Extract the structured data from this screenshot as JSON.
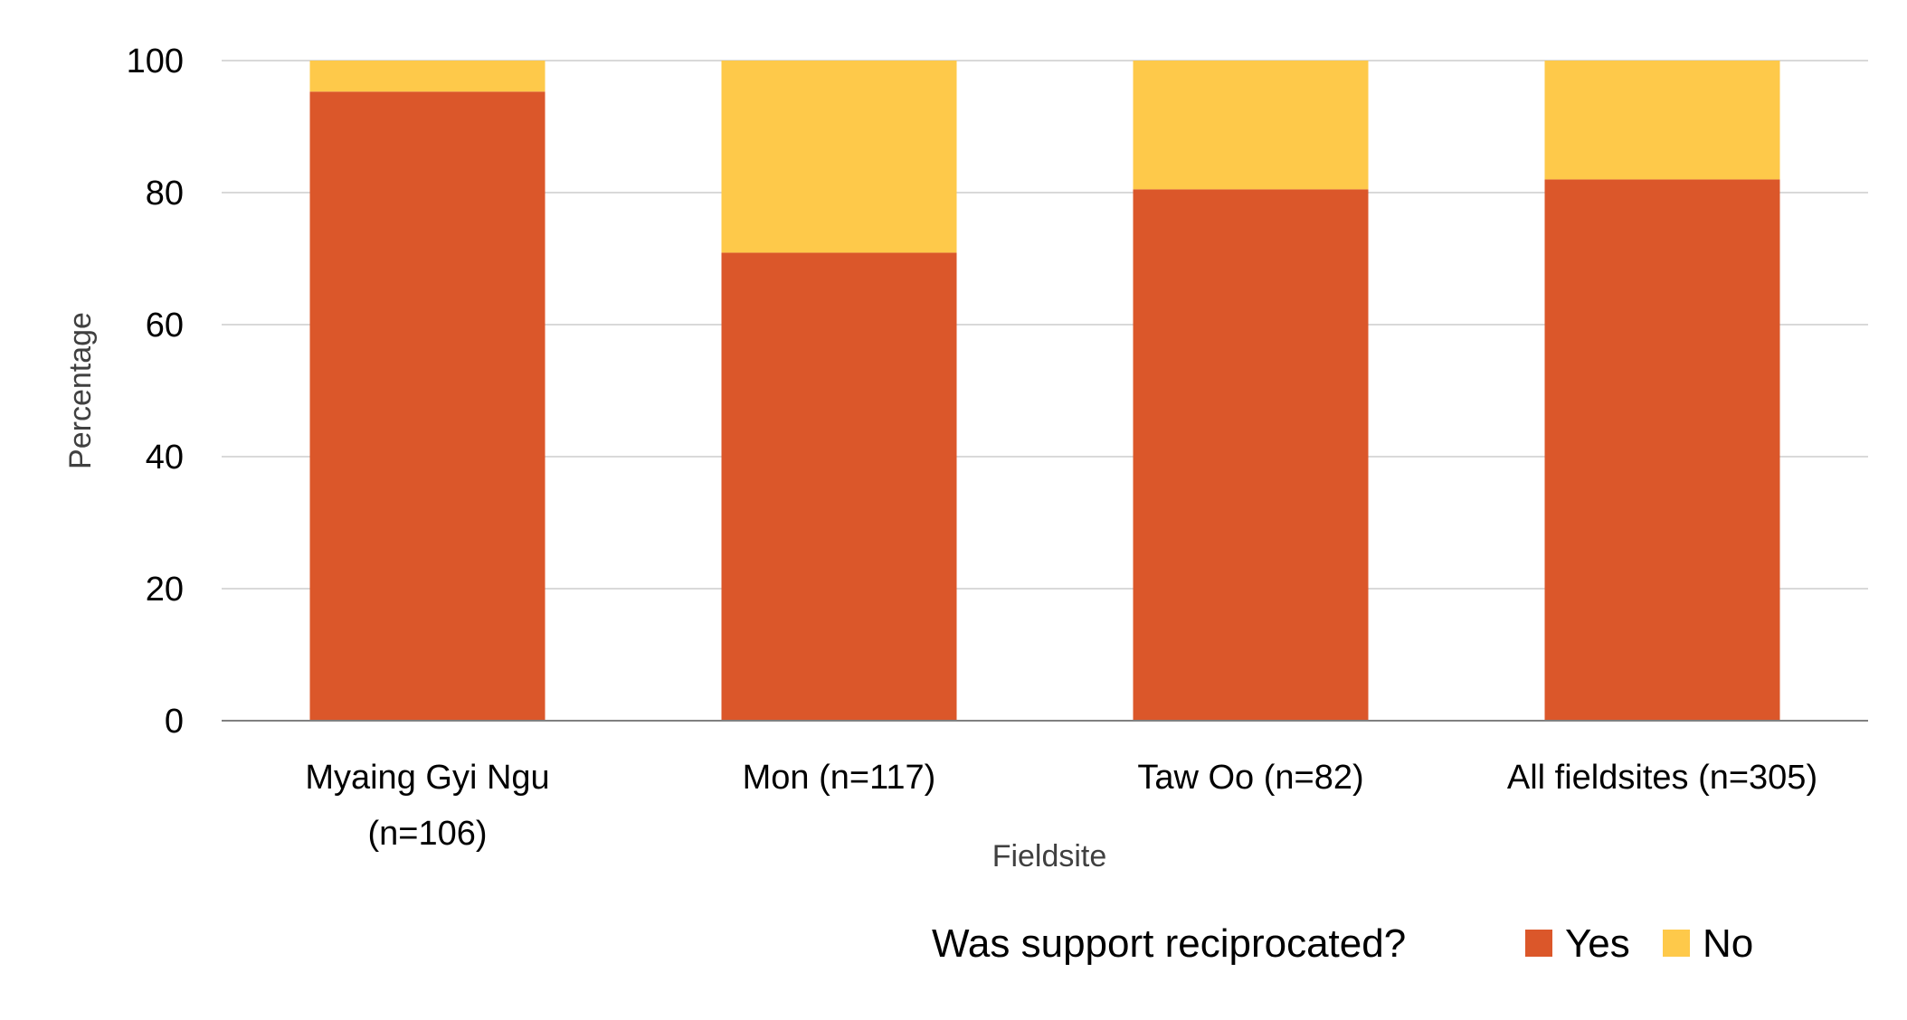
{
  "chart_data": {
    "type": "bar",
    "stacked": true,
    "categories": [
      [
        "Myaing Gyi Ngu",
        "(n=106)"
      ],
      [
        "Mon (n=117)"
      ],
      [
        "Taw Oo (n=82)"
      ],
      [
        "All fieldsites (n=305)"
      ]
    ],
    "series": [
      {
        "name": "Yes",
        "color": "#DB572A",
        "values": [
          95.3,
          70.9,
          80.5,
          82.0
        ]
      },
      {
        "name": "No",
        "color": "#FEC94A",
        "values": [
          4.7,
          29.1,
          19.5,
          18.0
        ]
      }
    ],
    "xlabel": "Fieldsite",
    "ylabel": "Percentage",
    "ylim": [
      0,
      100
    ],
    "yticks": [
      0,
      20,
      40,
      60,
      80,
      100
    ],
    "grid": true,
    "legend": {
      "title": "Was support reciprocated?",
      "placement": "bottom-right"
    },
    "colors": {
      "grid": "#D9D9D9",
      "axis": "#808080"
    }
  }
}
